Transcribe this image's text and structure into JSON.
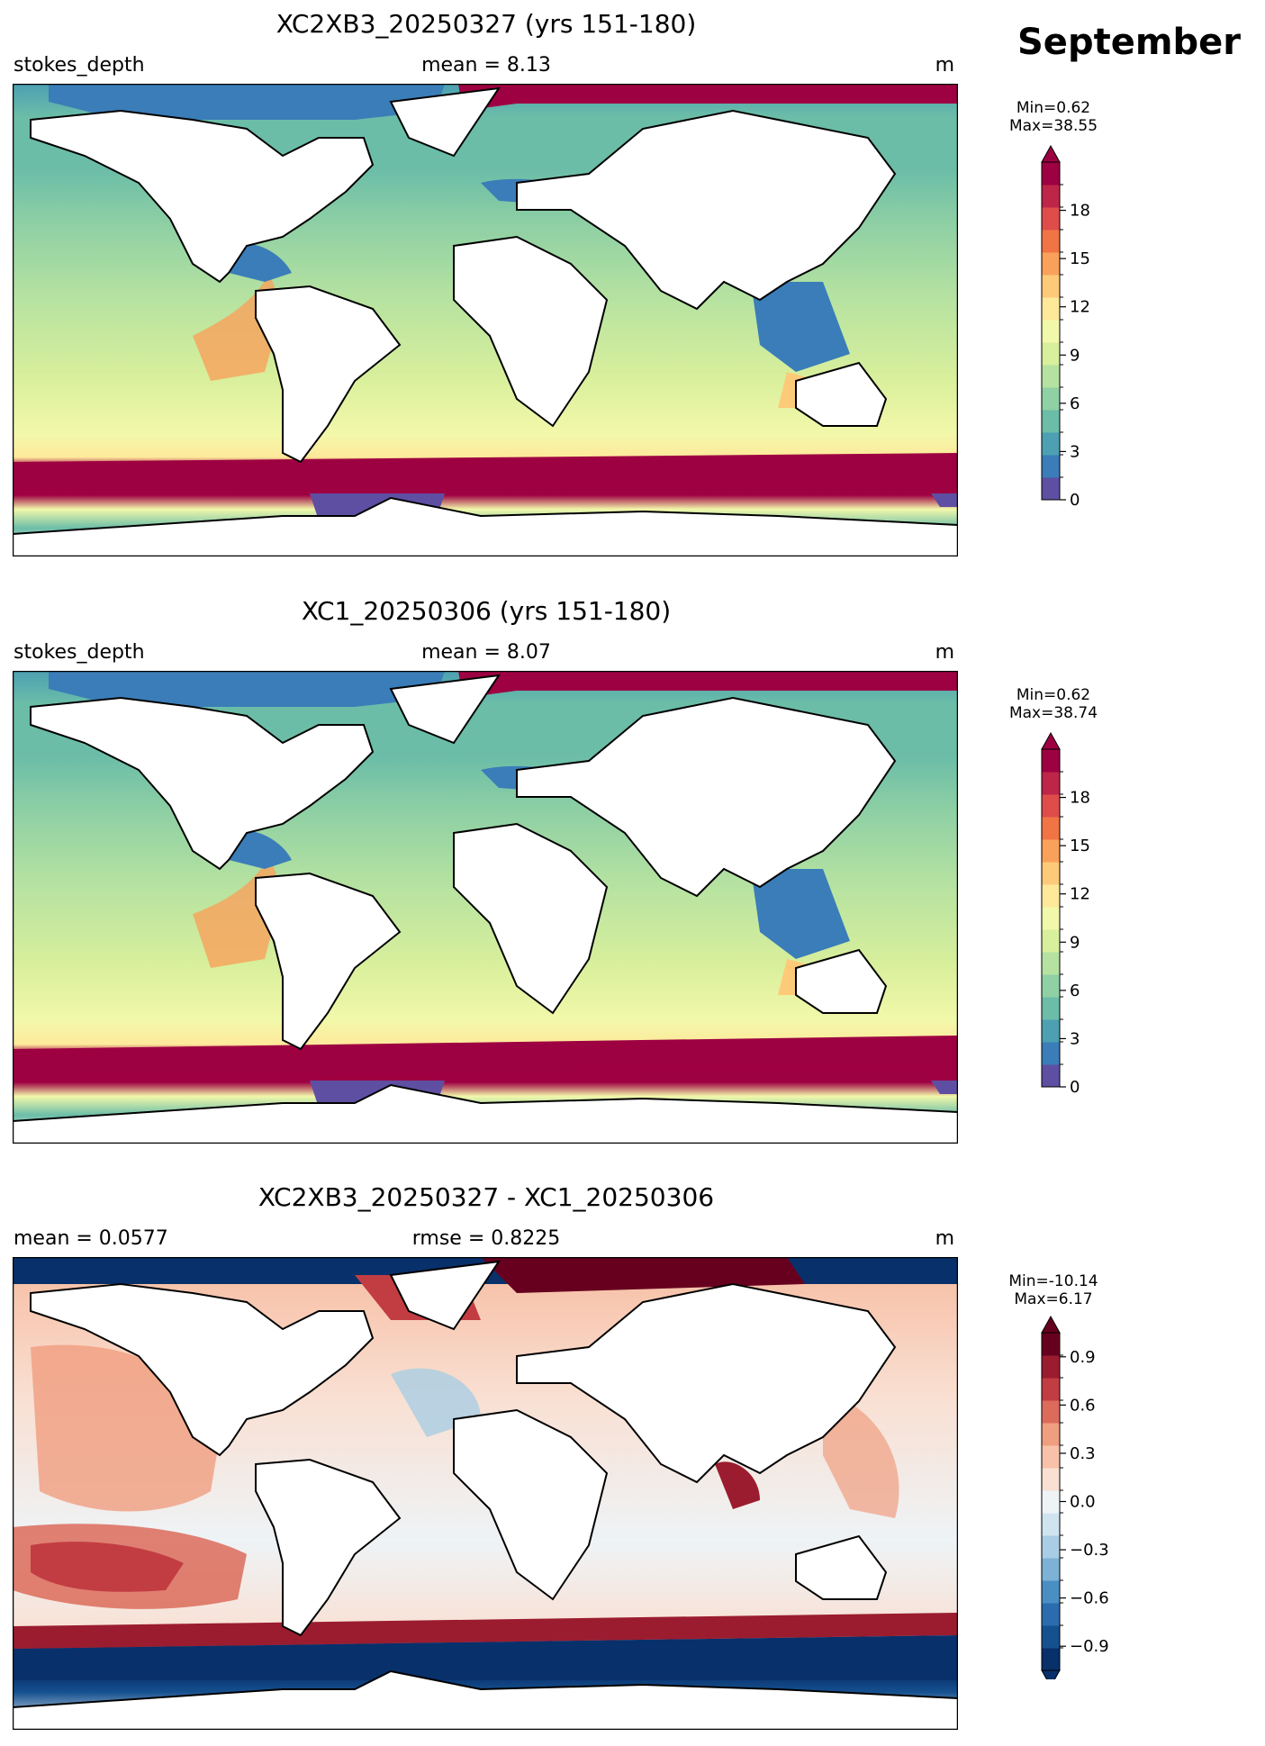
{
  "figure": {
    "month": "September"
  },
  "panels": [
    {
      "title": "XC2XB3_20250327 (yrs 151-180)",
      "left_label": "stokes_depth",
      "center_label": "mean = 8.13",
      "right_label": "m",
      "min_text": "Min=0.62",
      "max_text": "Max=38.55",
      "colorbar": {
        "colors": [
          "#5e4fa2",
          "#3a7db8",
          "#4ca0b2",
          "#6bbda8",
          "#8fd0a4",
          "#b5e2a1",
          "#d8ef9c",
          "#f2f8aa",
          "#fee99b",
          "#fdca79",
          "#f9a15b",
          "#f17445",
          "#de4d4a",
          "#bd2549",
          "#9e0142"
        ],
        "ticks": [
          {
            "value": 0,
            "label": "0"
          },
          {
            "value": 3,
            "label": "3"
          },
          {
            "value": 6,
            "label": "6"
          },
          {
            "value": 9,
            "label": "9"
          },
          {
            "value": 12,
            "label": "12"
          },
          {
            "value": 15,
            "label": "15"
          },
          {
            "value": 18,
            "label": "18"
          }
        ],
        "vmin": 0,
        "vmax": 21
      }
    },
    {
      "title": "XC1_20250306 (yrs 151-180)",
      "left_label": "stokes_depth",
      "center_label": "mean = 8.07",
      "right_label": "m",
      "min_text": "Min=0.62",
      "max_text": "Max=38.74",
      "colorbar": {
        "colors": [
          "#5e4fa2",
          "#3a7db8",
          "#4ca0b2",
          "#6bbda8",
          "#8fd0a4",
          "#b5e2a1",
          "#d8ef9c",
          "#f2f8aa",
          "#fee99b",
          "#fdca79",
          "#f9a15b",
          "#f17445",
          "#de4d4a",
          "#bd2549",
          "#9e0142"
        ],
        "ticks": [
          {
            "value": 0,
            "label": "0"
          },
          {
            "value": 3,
            "label": "3"
          },
          {
            "value": 6,
            "label": "6"
          },
          {
            "value": 9,
            "label": "9"
          },
          {
            "value": 12,
            "label": "12"
          },
          {
            "value": 15,
            "label": "15"
          },
          {
            "value": 18,
            "label": "18"
          }
        ],
        "vmin": 0,
        "vmax": 21
      }
    },
    {
      "title": "XC2XB3_20250327 - XC1_20250306",
      "left_label": "mean = 0.0577",
      "center_label": "rmse = 0.8225",
      "right_label": "m",
      "min_text": "Min=-10.14",
      "max_text": "Max=6.17",
      "colorbar": {
        "colors": [
          "#08306b",
          "#15508f",
          "#2b6cae",
          "#4a8fc4",
          "#7db2d6",
          "#a9cde4",
          "#d0e4f0",
          "#eef3f6",
          "#f9e0d3",
          "#f7c2a9",
          "#f09e80",
          "#dc6b5b",
          "#c23d42",
          "#9b1c2f",
          "#67001f"
        ],
        "ticks": [
          {
            "value": -0.9,
            "label": "−0.9"
          },
          {
            "value": -0.6,
            "label": "−0.6"
          },
          {
            "value": -0.3,
            "label": "−0.3"
          },
          {
            "value": 0.0,
            "label": "0.0"
          },
          {
            "value": 0.3,
            "label": "0.3"
          },
          {
            "value": 0.6,
            "label": "0.6"
          },
          {
            "value": 0.9,
            "label": "0.9"
          }
        ],
        "vmin": -1.05,
        "vmax": 1.05
      }
    }
  ]
}
